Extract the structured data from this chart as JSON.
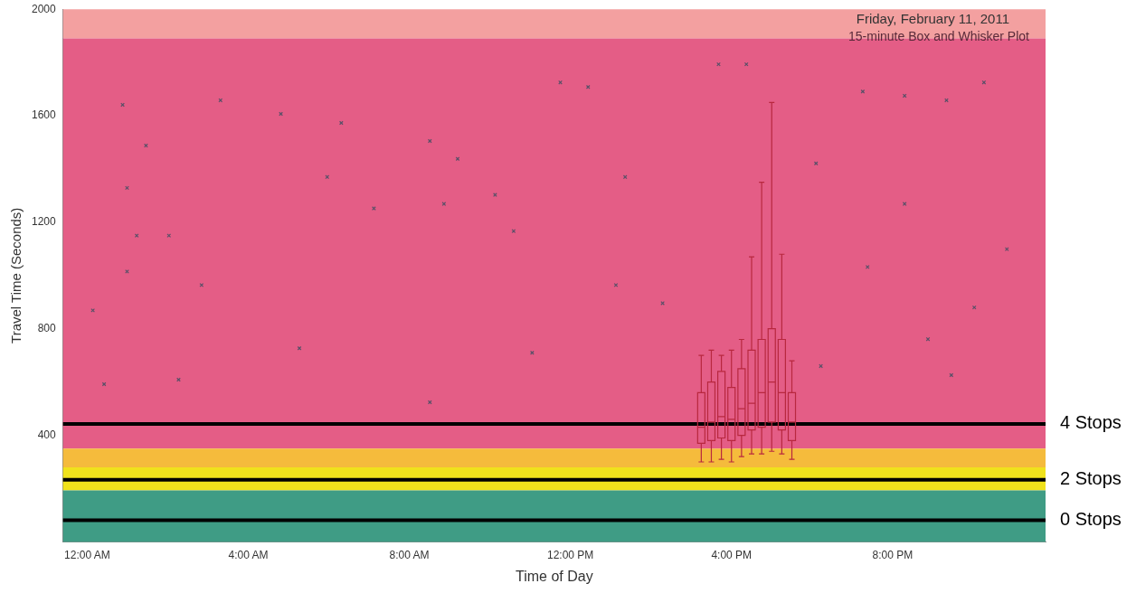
{
  "chart_data": {
    "type": "box",
    "title": "Friday, February 11, 2011",
    "subtitle": "15-minute Box and Whisker Plot",
    "xlabel": "Time of Day",
    "ylabel": "Travel Time (Seconds)",
    "xlim": [
      -0.6,
      23.8
    ],
    "xticks": [
      {
        "value": 0,
        "label": "12:00 AM"
      },
      {
        "value": 4,
        "label": "4:00 AM"
      },
      {
        "value": 8,
        "label": "8:00 AM"
      },
      {
        "value": 12,
        "label": "12:00 PM"
      },
      {
        "value": 16,
        "label": "4:00 PM"
      },
      {
        "value": 20,
        "label": "8:00 PM"
      }
    ],
    "ylim": [
      0,
      2000
    ],
    "yticks": [
      400,
      800,
      1200,
      1600,
      2000
    ],
    "grid": false,
    "series": [
      {
        "type": "box",
        "color": "#b8283f",
        "x": [
          15.25,
          15.5,
          15.75,
          16,
          16.25,
          16.5,
          16.75,
          17,
          17.25,
          17.5
        ],
        "boxes": [
          {
            "low": 300,
            "q1": 370,
            "median": 430,
            "q3": 560,
            "high": 700
          },
          {
            "low": 300,
            "q1": 380,
            "median": 450,
            "q3": 600,
            "high": 720
          },
          {
            "low": 310,
            "q1": 390,
            "median": 470,
            "q3": 640,
            "high": 700
          },
          {
            "low": 300,
            "q1": 380,
            "median": 460,
            "q3": 580,
            "high": 720
          },
          {
            "low": 320,
            "q1": 400,
            "median": 500,
            "q3": 650,
            "high": 760
          },
          {
            "low": 330,
            "q1": 420,
            "median": 520,
            "q3": 720,
            "high": 1070
          },
          {
            "low": 330,
            "q1": 430,
            "median": 560,
            "q3": 760,
            "high": 1350
          },
          {
            "low": 340,
            "q1": 450,
            "median": 600,
            "q3": 800,
            "high": 1650
          },
          {
            "low": 330,
            "q1": 420,
            "median": 560,
            "q3": 760,
            "high": 1080
          },
          {
            "low": 310,
            "q1": 380,
            "median": 450,
            "q3": 560,
            "high": 680
          }
        ]
      },
      {
        "type": "scatter",
        "color": "#5a5068",
        "marker": "cross",
        "x": [
          0.88,
          1.46,
          0.99,
          1.23,
          2.03,
          0.99,
          0.14,
          2.84,
          0.42,
          2.27,
          4.81,
          3.31,
          6.31,
          5.96,
          7.12,
          8.86,
          8.51,
          9.2,
          10.13,
          10.59,
          11.75,
          12.44,
          13.36,
          13.13,
          14.29,
          15.68,
          16.37,
          18.1,
          19.26,
          20.3,
          21.34,
          22.27,
          20.88,
          20.3,
          19.38,
          22.03,
          22.84,
          11.05,
          8.51,
          5.27,
          21.46,
          18.22
        ],
        "values": [
          1641,
          1488,
          1329,
          1150,
          1150,
          1015,
          869,
          964,
          592,
          609,
          1607,
          1658,
          1573,
          1370,
          1252,
          1269,
          1505,
          1438,
          1303,
          1167,
          1725,
          1708,
          1370,
          964,
          896,
          1793,
          1793,
          1421,
          1691,
          1675,
          1658,
          1725,
          761,
          1269,
          1032,
          880,
          1099,
          710,
          524,
          727,
          626,
          660
        ]
      }
    ],
    "bands": [
      {
        "axis": "y",
        "from": 1890,
        "to": 2000,
        "color": "#f3a0a0"
      },
      {
        "axis": "y",
        "from": 350,
        "to": 1890,
        "color": "#e45d86"
      },
      {
        "axis": "y",
        "from": 280,
        "to": 350,
        "color": "#f5bb3c"
      },
      {
        "axis": "y",
        "from": 193,
        "to": 280,
        "color": "#f0e21c"
      },
      {
        "axis": "y",
        "from": 0,
        "to": 193,
        "color": "#3f9c85"
      }
    ],
    "ref_lines": [
      {
        "axis": "y",
        "value": 443,
        "label": "4 Stops",
        "color": "#000000"
      },
      {
        "axis": "y",
        "value": 233,
        "label": "2 Stops",
        "color": "#000000"
      },
      {
        "axis": "y",
        "value": 81,
        "label": "0 Stops",
        "color": "#000000"
      }
    ]
  }
}
